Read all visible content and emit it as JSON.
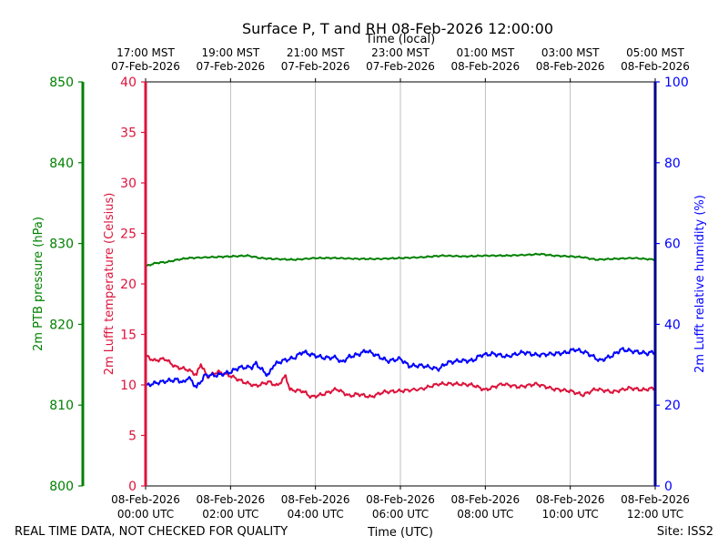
{
  "chart_data": {
    "type": "line",
    "title": "Surface P, T and RH 08-Feb-2026 12:00:00",
    "top_axis_label": "Time (local)",
    "bottom_axis_label": "Time (UTC)",
    "top_ticks": [
      {
        "line1": "17:00 MST",
        "line2": "07-Feb-2026"
      },
      {
        "line1": "19:00 MST",
        "line2": "07-Feb-2026"
      },
      {
        "line1": "21:00 MST",
        "line2": "07-Feb-2026"
      },
      {
        "line1": "23:00 MST",
        "line2": "07-Feb-2026"
      },
      {
        "line1": "01:00 MST",
        "line2": "08-Feb-2026"
      },
      {
        "line1": "03:00 MST",
        "line2": "08-Feb-2026"
      },
      {
        "line1": "05:00 MST",
        "line2": "08-Feb-2026"
      }
    ],
    "bottom_ticks": [
      {
        "line1": "08-Feb-2026",
        "line2": "00:00 UTC"
      },
      {
        "line1": "08-Feb-2026",
        "line2": "02:00 UTC"
      },
      {
        "line1": "08-Feb-2026",
        "line2": "04:00 UTC"
      },
      {
        "line1": "08-Feb-2026",
        "line2": "06:00 UTC"
      },
      {
        "line1": "08-Feb-2026",
        "line2": "08:00 UTC"
      },
      {
        "line1": "08-Feb-2026",
        "line2": "10:00 UTC"
      },
      {
        "line1": "08-Feb-2026",
        "line2": "12:00 UTC"
      }
    ],
    "x_unit": "hours UTC since 08-Feb-2026 00:00",
    "xlim": [
      0,
      12
    ],
    "grid": true,
    "axes": {
      "pressure": {
        "label": "2m PTB pressure (hPa)",
        "ylim": [
          800,
          850
        ],
        "ticks": [
          800,
          810,
          820,
          830,
          840,
          850
        ],
        "color": "#008000"
      },
      "temperature": {
        "label": "2m Lufft temperature (Celsius)",
        "ylim": [
          0,
          40
        ],
        "ticks": [
          0,
          5,
          10,
          15,
          20,
          25,
          30,
          35,
          40
        ],
        "color": "#dc143c"
      },
      "humidity": {
        "label": "2m Lufft relative humidity (%)",
        "ylim": [
          0,
          100
        ],
        "ticks": [
          0,
          20,
          40,
          60,
          80,
          100
        ],
        "color": "#0000ff"
      }
    },
    "series": [
      {
        "axis": "pressure",
        "color": "#008000",
        "points": [
          [
            0,
            827.2
          ],
          [
            0.25,
            827.6
          ],
          [
            0.5,
            827.7
          ],
          [
            0.75,
            828.0
          ],
          [
            1,
            828.2
          ],
          [
            1.5,
            828.3
          ],
          [
            2,
            828.4
          ],
          [
            2.4,
            828.5
          ],
          [
            2.7,
            828.2
          ],
          [
            3,
            828.1
          ],
          [
            3.5,
            828.0
          ],
          [
            4,
            828.2
          ],
          [
            4.5,
            828.2
          ],
          [
            5,
            828.1
          ],
          [
            5.5,
            828.1
          ],
          [
            6,
            828.2
          ],
          [
            6.5,
            828.3
          ],
          [
            7,
            828.5
          ],
          [
            7.5,
            828.4
          ],
          [
            8,
            828.5
          ],
          [
            8.5,
            828.5
          ],
          [
            9,
            828.6
          ],
          [
            9.3,
            828.7
          ],
          [
            9.6,
            828.5
          ],
          [
            10,
            828.4
          ],
          [
            10.3,
            828.3
          ],
          [
            10.6,
            828.0
          ],
          [
            11,
            828.1
          ],
          [
            11.5,
            828.2
          ],
          [
            12,
            828.0
          ]
        ]
      },
      {
        "axis": "temperature",
        "color": "#dc143c",
        "points": [
          [
            0,
            12.9
          ],
          [
            0.2,
            12.4
          ],
          [
            0.45,
            12.6
          ],
          [
            0.7,
            11.8
          ],
          [
            1,
            11.5
          ],
          [
            1.2,
            11.0
          ],
          [
            1.3,
            12.1
          ],
          [
            1.45,
            10.8
          ],
          [
            1.7,
            11.3
          ],
          [
            2,
            10.9
          ],
          [
            2.3,
            10.3
          ],
          [
            2.6,
            9.9
          ],
          [
            2.9,
            10.3
          ],
          [
            3.1,
            9.9
          ],
          [
            3.3,
            10.9
          ],
          [
            3.4,
            9.5
          ],
          [
            3.7,
            9.4
          ],
          [
            3.9,
            8.8
          ],
          [
            4.2,
            9.1
          ],
          [
            4.5,
            9.6
          ],
          [
            4.8,
            8.9
          ],
          [
            5,
            9.1
          ],
          [
            5.3,
            8.8
          ],
          [
            5.6,
            9.3
          ],
          [
            6,
            9.4
          ],
          [
            6.5,
            9.6
          ],
          [
            6.9,
            10.1
          ],
          [
            7.3,
            10.1
          ],
          [
            7.7,
            10.0
          ],
          [
            8,
            9.5
          ],
          [
            8.4,
            10.1
          ],
          [
            8.8,
            9.8
          ],
          [
            9.2,
            10.1
          ],
          [
            9.6,
            9.6
          ],
          [
            10,
            9.4
          ],
          [
            10.3,
            9.0
          ],
          [
            10.6,
            9.6
          ],
          [
            11,
            9.3
          ],
          [
            11.4,
            9.7
          ],
          [
            11.7,
            9.5
          ],
          [
            12,
            9.7
          ]
        ]
      },
      {
        "axis": "humidity",
        "color": "#0000ff",
        "points": [
          [
            0,
            24.8
          ],
          [
            0.2,
            25.4
          ],
          [
            0.5,
            26.0
          ],
          [
            0.75,
            26.3
          ],
          [
            0.9,
            25.5
          ],
          [
            1,
            27.0
          ],
          [
            1.2,
            24.4
          ],
          [
            1.4,
            27.4
          ],
          [
            1.7,
            27.4
          ],
          [
            2,
            28.2
          ],
          [
            2.2,
            29.3
          ],
          [
            2.5,
            29.4
          ],
          [
            2.6,
            30.3
          ],
          [
            2.8,
            28.1
          ],
          [
            2.9,
            27.4
          ],
          [
            3.0,
            29.8
          ],
          [
            3.2,
            30.9
          ],
          [
            3.5,
            31.7
          ],
          [
            3.7,
            33.2
          ],
          [
            3.9,
            32.5
          ],
          [
            4.2,
            31.7
          ],
          [
            4.5,
            31.8
          ],
          [
            4.6,
            30.5
          ],
          [
            4.8,
            32.0
          ],
          [
            5,
            32.5
          ],
          [
            5.2,
            33.5
          ],
          [
            5.5,
            32.0
          ],
          [
            5.7,
            30.9
          ],
          [
            6,
            31.5
          ],
          [
            6.2,
            29.7
          ],
          [
            6.5,
            29.8
          ],
          [
            6.9,
            28.9
          ],
          [
            7.1,
            30.5
          ],
          [
            7.4,
            31.0
          ],
          [
            7.7,
            31.0
          ],
          [
            7.9,
            32.4
          ],
          [
            8.2,
            32.7
          ],
          [
            8.5,
            32.0
          ],
          [
            8.9,
            33.1
          ],
          [
            9.2,
            32.4
          ],
          [
            9.6,
            32.7
          ],
          [
            9.9,
            33.0
          ],
          [
            10.1,
            33.8
          ],
          [
            10.4,
            32.9
          ],
          [
            10.7,
            31.0
          ],
          [
            11,
            32.3
          ],
          [
            11.2,
            33.8
          ],
          [
            11.5,
            33.3
          ],
          [
            11.8,
            32.8
          ],
          [
            12,
            33.2
          ]
        ]
      }
    ]
  },
  "footer": {
    "notice": "REAL TIME DATA, NOT CHECKED FOR QUALITY",
    "site": "Site: ISS2"
  }
}
